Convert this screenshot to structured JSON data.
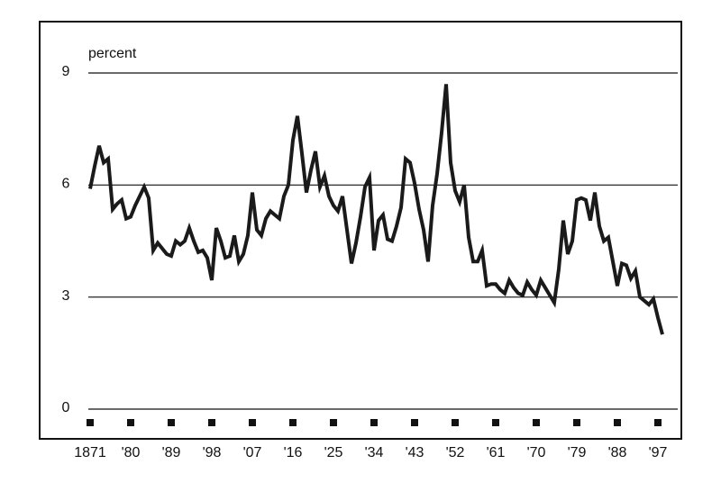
{
  "chart_data": {
    "type": "line",
    "y_label": "percent",
    "x": [
      1871,
      1872,
      1873,
      1874,
      1875,
      1876,
      1877,
      1878,
      1879,
      1880,
      1881,
      1882,
      1883,
      1884,
      1885,
      1886,
      1887,
      1888,
      1889,
      1890,
      1891,
      1892,
      1893,
      1894,
      1895,
      1896,
      1897,
      1898,
      1899,
      1900,
      1901,
      1902,
      1903,
      1904,
      1905,
      1906,
      1907,
      1908,
      1909,
      1910,
      1911,
      1912,
      1913,
      1914,
      1915,
      1916,
      1917,
      1918,
      1919,
      1920,
      1921,
      1922,
      1923,
      1924,
      1925,
      1926,
      1927,
      1928,
      1929,
      1930,
      1931,
      1932,
      1933,
      1934,
      1935,
      1936,
      1937,
      1938,
      1939,
      1940,
      1941,
      1942,
      1943,
      1944,
      1945,
      1946,
      1947,
      1948,
      1949,
      1950,
      1951,
      1952,
      1953,
      1954,
      1955,
      1956,
      1957,
      1958,
      1959,
      1960,
      1961,
      1962,
      1963,
      1964,
      1965,
      1966,
      1967,
      1968,
      1969,
      1970,
      1971,
      1972,
      1973,
      1974,
      1975,
      1976,
      1977,
      1978,
      1979,
      1980,
      1981,
      1982,
      1983,
      1984,
      1985,
      1986,
      1987,
      1988,
      1989,
      1990,
      1991,
      1992,
      1993,
      1994,
      1995,
      1996,
      1997,
      1998
    ],
    "series": [
      {
        "color": "#1a1a1a",
        "values": [
          5.9,
          6.5,
          7.05,
          6.6,
          6.7,
          5.35,
          5.5,
          5.6,
          5.1,
          5.15,
          5.45,
          5.7,
          5.95,
          5.65,
          4.25,
          4.45,
          4.3,
          4.15,
          4.1,
          4.5,
          4.4,
          4.5,
          4.85,
          4.5,
          4.2,
          4.25,
          4.05,
          3.45,
          4.85,
          4.5,
          4.05,
          4.1,
          4.65,
          3.95,
          4.15,
          4.65,
          5.8,
          4.8,
          4.65,
          5.1,
          5.3,
          5.2,
          5.1,
          5.7,
          6.0,
          7.2,
          7.85,
          6.85,
          5.8,
          6.4,
          6.9,
          5.95,
          6.25,
          5.7,
          5.45,
          5.3,
          5.7,
          4.8,
          3.9,
          4.45,
          5.15,
          5.95,
          6.2,
          4.25,
          5.05,
          5.2,
          4.55,
          4.5,
          4.9,
          5.4,
          6.7,
          6.6,
          6.05,
          5.35,
          4.8,
          3.95,
          5.45,
          6.3,
          7.4,
          8.7,
          6.6,
          5.85,
          5.55,
          6.0,
          4.6,
          3.95,
          3.95,
          4.25,
          3.3,
          3.35,
          3.35,
          3.2,
          3.1,
          3.45,
          3.25,
          3.1,
          3.05,
          3.4,
          3.2,
          3.05,
          3.45,
          3.25,
          3.05,
          2.85,
          3.75,
          5.05,
          4.15,
          4.5,
          5.6,
          5.65,
          5.6,
          5.05,
          5.8,
          4.9,
          4.5,
          4.6,
          3.95,
          3.3,
          3.9,
          3.85,
          3.5,
          3.7,
          3.0,
          2.9,
          2.8,
          2.95,
          2.45,
          2.0
        ]
      }
    ],
    "xlim": [
      1870,
      2001
    ],
    "xticks": [
      {
        "value": 1871,
        "label": "1871"
      },
      {
        "value": 1880,
        "label": "'80"
      },
      {
        "value": 1889,
        "label": "'89"
      },
      {
        "value": 1898,
        "label": "'98"
      },
      {
        "value": 1907,
        "label": "'07"
      },
      {
        "value": 1916,
        "label": "'16"
      },
      {
        "value": 1925,
        "label": "'25"
      },
      {
        "value": 1934,
        "label": "'34"
      },
      {
        "value": 1943,
        "label": "'43"
      },
      {
        "value": 1952,
        "label": "'52"
      },
      {
        "value": 1961,
        "label": "'61"
      },
      {
        "value": 1970,
        "label": "'70"
      },
      {
        "value": 1979,
        "label": "'79"
      },
      {
        "value": 1988,
        "label": "'88"
      },
      {
        "value": 1997,
        "label": "'97"
      }
    ],
    "ylim": [
      0,
      9
    ],
    "yticks": [
      0,
      3,
      6,
      9
    ],
    "grid": true
  }
}
